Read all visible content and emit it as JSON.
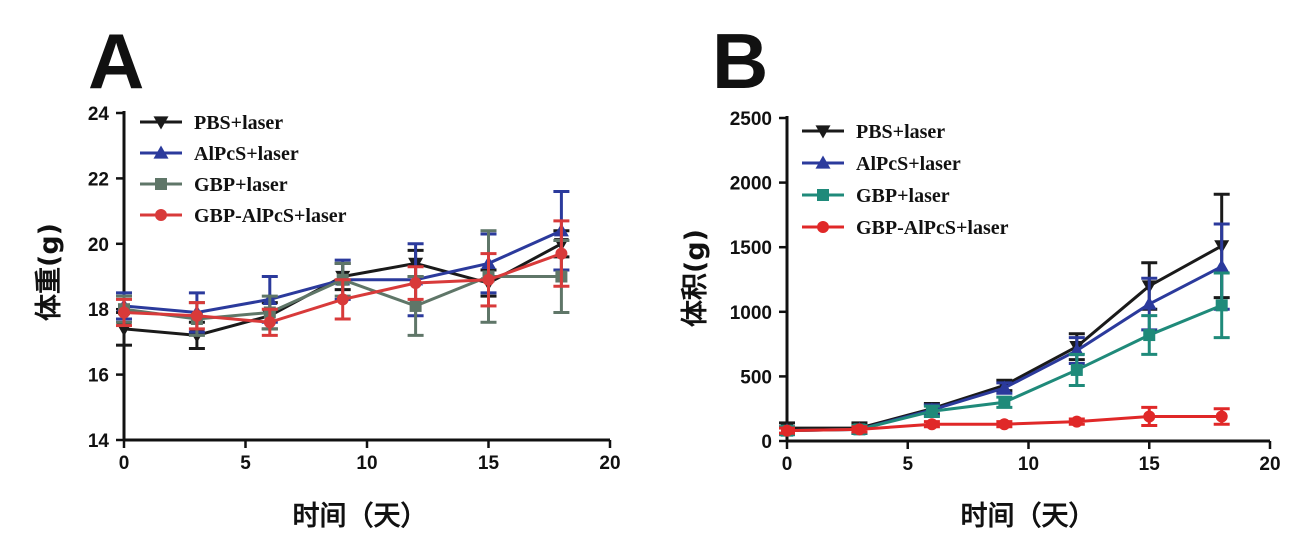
{
  "chart_data": [
    {
      "panel_label": "A",
      "type": "line",
      "xlabel": "时间（天）",
      "ylabel": "体重(g)",
      "xlim": [
        0,
        20
      ],
      "ylim": [
        14,
        24
      ],
      "xticks": [
        "0",
        "5",
        "10",
        "15",
        "20"
      ],
      "yticks": [
        "14",
        "16",
        "18",
        "20",
        "22",
        "24"
      ],
      "legend_position": "top-left",
      "x": [
        0,
        3,
        6,
        9,
        12,
        15,
        18
      ],
      "series": [
        {
          "name": "PBS+laser",
          "color": "#1a1a1a",
          "marker": "triangle-down",
          "values": [
            17.4,
            17.2,
            17.8,
            19.0,
            19.4,
            18.8,
            20.0
          ],
          "errors": [
            0.5,
            0.4,
            0.4,
            0.4,
            0.4,
            0.4,
            0.4
          ]
        },
        {
          "name": "AlPcS+laser",
          "color": "#2b3a9c",
          "marker": "triangle-up",
          "values": [
            18.1,
            17.9,
            18.3,
            18.9,
            18.9,
            19.4,
            20.4
          ],
          "errors": [
            0.4,
            0.6,
            0.7,
            0.6,
            1.1,
            0.9,
            1.2
          ]
        },
        {
          "name": "GBP+laser",
          "color": "#5f7668",
          "marker": "square",
          "values": [
            18.0,
            17.7,
            17.9,
            18.9,
            18.1,
            19.0,
            19.0
          ],
          "errors": [
            0.4,
            0.5,
            0.5,
            0.5,
            0.9,
            1.4,
            1.1
          ]
        },
        {
          "name": "GBP-AlPcS+laser",
          "color": "#d83a3a",
          "marker": "circle",
          "values": [
            17.9,
            17.8,
            17.6,
            18.3,
            18.8,
            18.9,
            19.7
          ],
          "errors": [
            0.4,
            0.4,
            0.4,
            0.6,
            0.5,
            0.8,
            1.0
          ]
        }
      ]
    },
    {
      "panel_label": "B",
      "type": "line",
      "xlabel": "时间（天）",
      "ylabel": "体积(g)",
      "xlim": [
        0,
        20
      ],
      "ylim": [
        0,
        2500
      ],
      "xticks": [
        "0",
        "5",
        "10",
        "15",
        "20"
      ],
      "yticks": [
        "0",
        "500",
        "1000",
        "1500",
        "2000",
        "2500"
      ],
      "legend_position": "top-left",
      "x": [
        0,
        3,
        6,
        9,
        12,
        15,
        18
      ],
      "series": [
        {
          "name": "PBS+laser",
          "color": "#1a1a1a",
          "marker": "triangle-down",
          "values": [
            100,
            100,
            250,
            430,
            730,
            1200,
            1510
          ],
          "errors": [
            40,
            40,
            40,
            40,
            100,
            180,
            400
          ]
        },
        {
          "name": "AlPcS+laser",
          "color": "#2b3a9c",
          "marker": "triangle-up",
          "values": [
            80,
            90,
            240,
            410,
            700,
            1060,
            1350
          ],
          "errors": [
            30,
            30,
            40,
            40,
            100,
            200,
            330
          ]
        },
        {
          "name": "GBP+laser",
          "color": "#1f8a7a",
          "marker": "square",
          "values": [
            80,
            90,
            230,
            300,
            550,
            820,
            1050
          ],
          "errors": [
            30,
            30,
            40,
            40,
            120,
            150,
            250
          ]
        },
        {
          "name": "GBP-AlPcS+laser",
          "color": "#e02828",
          "marker": "circle",
          "values": [
            80,
            90,
            130,
            130,
            150,
            190,
            190
          ],
          "errors": [
            20,
            20,
            20,
            20,
            20,
            70,
            60
          ]
        }
      ]
    }
  ]
}
